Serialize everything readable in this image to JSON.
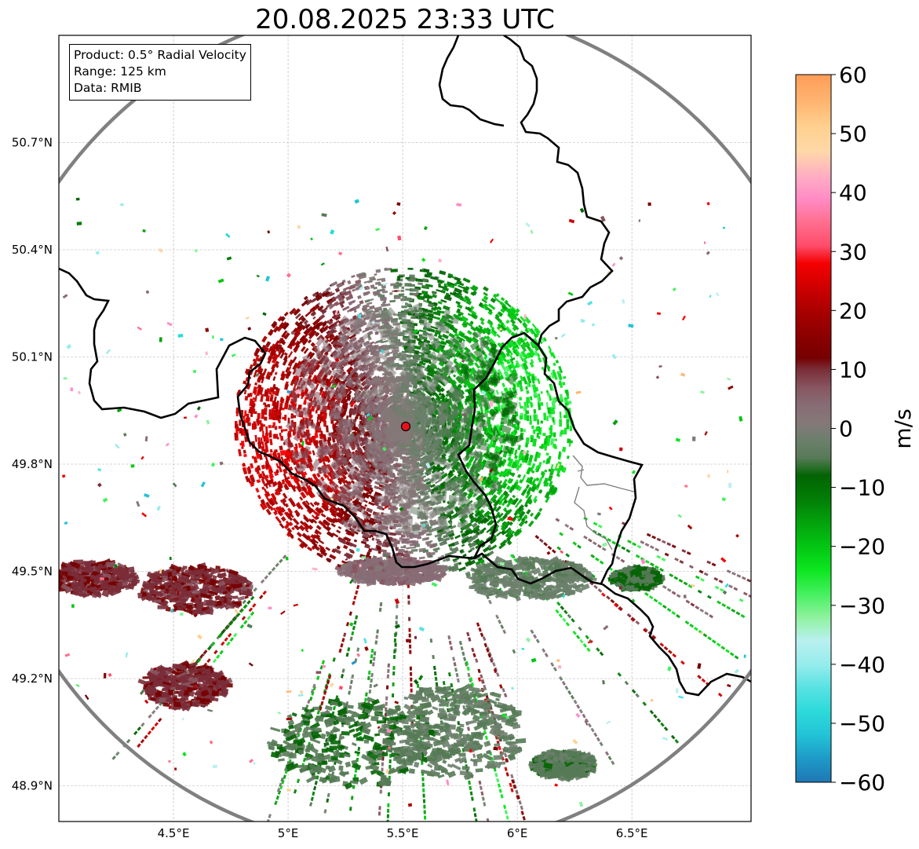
{
  "title": "20.08.2025 23:33 UTC",
  "info_box": {
    "product": "Product: 0.5° Radial Velocity",
    "range": "Range: 125 km",
    "source": "Data: RMIB"
  },
  "chart_data": {
    "type": "heatmap",
    "title": "20.08.2025 23:33 UTC",
    "xlabel": "",
    "ylabel": "",
    "x_ticks": [
      {
        "value": 4.5,
        "label": "4.5°E"
      },
      {
        "value": 5.0,
        "label": "5°E"
      },
      {
        "value": 5.5,
        "label": "5.5°E"
      },
      {
        "value": 6.0,
        "label": "6°E"
      },
      {
        "value": 6.5,
        "label": "6.5°E"
      }
    ],
    "y_ticks": [
      {
        "value": 48.9,
        "label": "48.9°N"
      },
      {
        "value": 49.2,
        "label": "49.2°N"
      },
      {
        "value": 49.5,
        "label": "49.5°N"
      },
      {
        "value": 49.8,
        "label": "49.8°N"
      },
      {
        "value": 50.1,
        "label": "50.1°N"
      },
      {
        "value": 50.4,
        "label": "50.4°N"
      },
      {
        "value": 50.7,
        "label": "50.7°N"
      }
    ],
    "xlim": [
      4.0,
      7.02
    ],
    "ylim": [
      48.8,
      51.0
    ],
    "grid": true,
    "radar_site": {
      "lon": 5.505,
      "lat": 49.914
    },
    "range_km": 125,
    "colorbar": {
      "label": "m/s",
      "min": -60,
      "max": 60,
      "ticks": [
        -60,
        -50,
        -40,
        -30,
        -20,
        -10,
        0,
        10,
        20,
        30,
        40,
        50,
        60
      ],
      "stops": [
        {
          "v": -60,
          "color": "#1f77b4"
        },
        {
          "v": -56,
          "color": "#1e9ac8"
        },
        {
          "v": -52,
          "color": "#22c3d6"
        },
        {
          "v": -48,
          "color": "#2ddada"
        },
        {
          "v": -44,
          "color": "#58e2e2"
        },
        {
          "v": -40,
          "color": "#96ecec"
        },
        {
          "v": -36,
          "color": "#b9f0f0"
        },
        {
          "v": -32,
          "color": "#8ef29e"
        },
        {
          "v": -28,
          "color": "#44f05e"
        },
        {
          "v": -24,
          "color": "#0ce620"
        },
        {
          "v": -20,
          "color": "#03c612"
        },
        {
          "v": -16,
          "color": "#03a20c"
        },
        {
          "v": -12,
          "color": "#027e06"
        },
        {
          "v": -8,
          "color": "#026402"
        },
        {
          "v": -5,
          "color": "#577a57"
        },
        {
          "v": -2,
          "color": "#6c7f6c"
        },
        {
          "v": 1,
          "color": "#857878"
        },
        {
          "v": 4,
          "color": "#876c75"
        },
        {
          "v": 7,
          "color": "#875560"
        },
        {
          "v": 10,
          "color": "#7a2e38"
        },
        {
          "v": 12,
          "color": "#760000"
        },
        {
          "v": 16,
          "color": "#8e0000"
        },
        {
          "v": 20,
          "color": "#aa0000"
        },
        {
          "v": 24,
          "color": "#cf0000"
        },
        {
          "v": 28,
          "color": "#f40000"
        },
        {
          "v": 31,
          "color": "#ff4c6a"
        },
        {
          "v": 35,
          "color": "#ff6f8f"
        },
        {
          "v": 39,
          "color": "#ff8cc6"
        },
        {
          "v": 43,
          "color": "#ffb0c2"
        },
        {
          "v": 47,
          "color": "#ffd8a8"
        },
        {
          "v": 51,
          "color": "#ffd190"
        },
        {
          "v": 55,
          "color": "#ffb774"
        },
        {
          "v": 60,
          "color": "#ff9c58"
        }
      ]
    }
  }
}
